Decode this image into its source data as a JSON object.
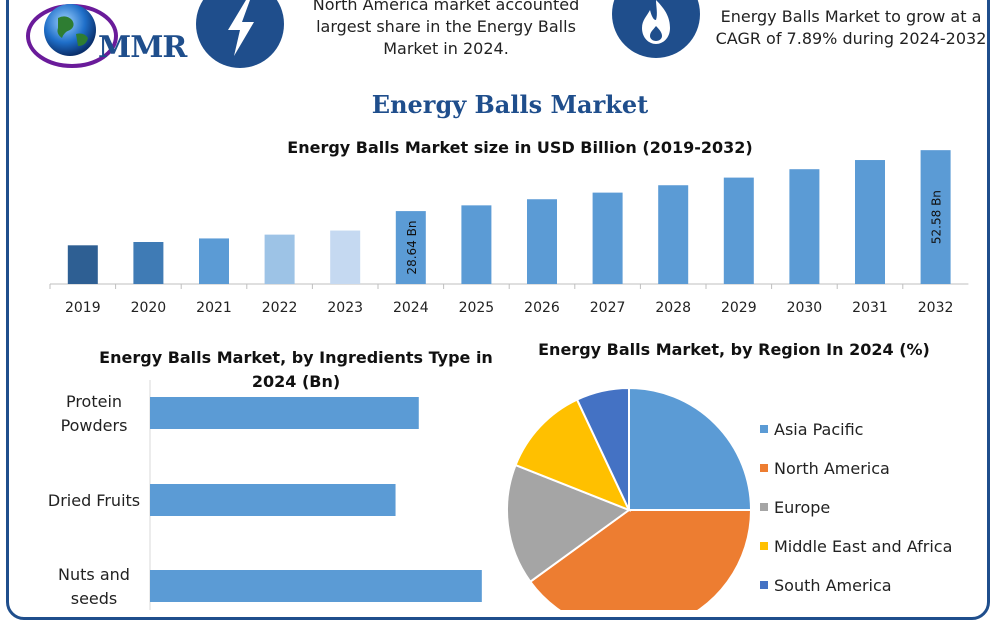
{
  "logo": {
    "text": "MMR"
  },
  "banner": {
    "left_text": "North America market accounted largest share in the Energy Balls Market in 2024.",
    "right_text": "Energy Balls Market to grow at a CAGR of 7.89% during 2024-2032",
    "left_icon": "lightning-icon",
    "right_icon": "flame-icon"
  },
  "main_title": "Energy Balls Market",
  "colors": {
    "brand": "#1f4e8c",
    "bar": "#5b9bd5"
  },
  "chart_data": [
    {
      "type": "bar",
      "title": "Energy Balls Market size in USD Billion (2019-2032)",
      "categories": [
        "2019",
        "2020",
        "2021",
        "2022",
        "2023",
        "2024",
        "2025",
        "2026",
        "2027",
        "2028",
        "2029",
        "2030",
        "2031",
        "2032"
      ],
      "values": [
        15.2,
        16.5,
        17.9,
        19.4,
        21.0,
        28.64,
        30.9,
        33.3,
        35.9,
        38.8,
        41.8,
        45.1,
        48.7,
        52.58
      ],
      "colors": [
        "#2e5f93",
        "#3f7bb5",
        "#5b9bd5",
        "#9dc3e6",
        "#c5d9f1",
        "#5b9bd5",
        "#5b9bd5",
        "#5b9bd5",
        "#5b9bd5",
        "#5b9bd5",
        "#5b9bd5",
        "#5b9bd5",
        "#5b9bd5",
        "#5b9bd5"
      ],
      "data_labels": [
        {
          "index": 5,
          "text": "28.64 Bn"
        },
        {
          "index": 13,
          "text": "52.58 Bn"
        }
      ],
      "ylim": [
        0,
        55
      ]
    },
    {
      "type": "bar",
      "orientation": "horizontal",
      "title": "Energy Balls Market, by Ingredients Type in 2024 (Bn)",
      "categories": [
        "Protein Powders",
        "Dried Fruits",
        "Nuts and seeds"
      ],
      "values": [
        8.1,
        7.4,
        10.0
      ],
      "xlim": [
        0,
        11
      ]
    },
    {
      "type": "pie",
      "title": "Energy Balls Market, by Region In 2024 (%)",
      "labels": [
        "Asia Pacific",
        "North America",
        "Europe",
        "Middle East and Africa",
        "South America"
      ],
      "values": [
        25,
        40,
        16,
        12,
        7
      ],
      "colors": [
        "#5b9bd5",
        "#ed7d31",
        "#a5a5a5",
        "#ffc000",
        "#4472c4"
      ],
      "legend": "right"
    }
  ]
}
